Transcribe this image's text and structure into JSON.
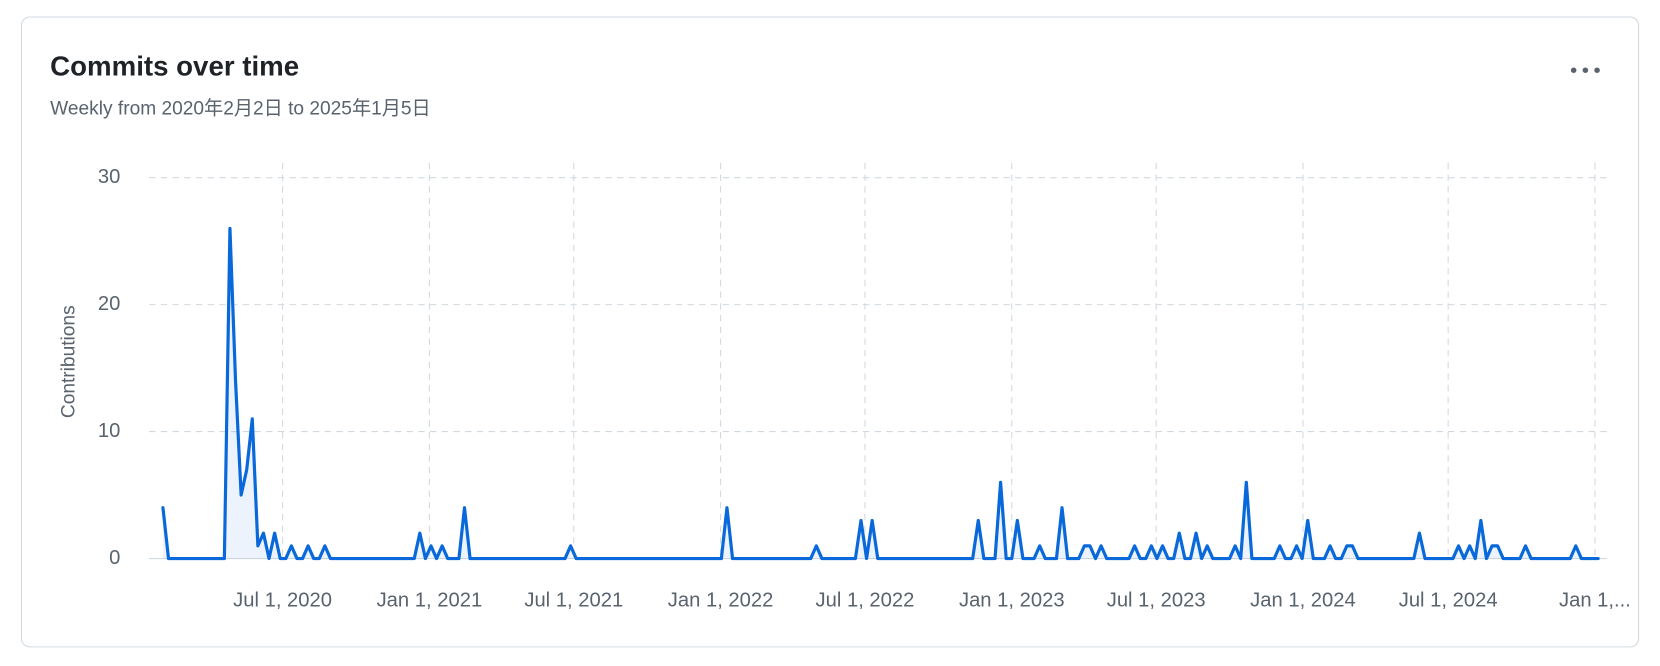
{
  "chart_data": {
    "type": "line",
    "title": "Commits over time",
    "subtitle": "Weekly from 2020年2月2日 to 2025年1月5日",
    "y_label": "Contributions",
    "x": [
      "2020-02-02",
      "2020-02-09",
      "2020-04-19",
      "2020-04-26",
      "2020-05-03",
      "2020-05-10",
      "2020-05-17",
      "2020-05-24",
      "2020-05-31",
      "2020-06-07",
      "2020-06-14",
      "2020-06-21",
      "2020-06-28",
      "2020-07-05",
      "2020-07-12",
      "2020-07-19",
      "2020-07-26",
      "2020-08-02",
      "2020-08-09",
      "2020-08-16",
      "2020-08-23",
      "2020-08-30",
      "2020-12-13",
      "2020-12-20",
      "2020-12-27",
      "2021-01-03",
      "2021-01-10",
      "2021-01-17",
      "2021-01-24",
      "2021-02-07",
      "2021-02-14",
      "2021-02-21",
      "2021-06-20",
      "2021-06-27",
      "2021-07-04",
      "2022-01-02",
      "2022-01-09",
      "2022-01-16",
      "2022-04-24",
      "2022-05-01",
      "2022-05-08",
      "2022-06-19",
      "2022-06-26",
      "2022-07-03",
      "2022-07-10",
      "2022-07-17",
      "2022-11-13",
      "2022-11-20",
      "2022-11-27",
      "2022-12-11",
      "2022-12-18",
      "2022-12-25",
      "2023-01-01",
      "2023-01-08",
      "2023-01-15",
      "2023-01-29",
      "2023-02-05",
      "2023-02-12",
      "2023-02-26",
      "2023-03-05",
      "2023-03-12",
      "2023-03-26",
      "2023-04-02",
      "2023-04-09",
      "2023-04-16",
      "2023-04-23",
      "2023-04-30",
      "2023-05-28",
      "2023-06-04",
      "2023-06-11",
      "2023-06-18",
      "2023-06-25",
      "2023-07-02",
      "2023-07-09",
      "2023-07-16",
      "2023-07-23",
      "2023-07-30",
      "2023-08-06",
      "2023-08-13",
      "2023-08-20",
      "2023-08-27",
      "2023-09-03",
      "2023-09-10",
      "2023-10-01",
      "2023-10-08",
      "2023-10-15",
      "2023-10-22",
      "2023-10-29",
      "2023-11-26",
      "2023-12-03",
      "2023-12-10",
      "2023-12-17",
      "2023-12-24",
      "2023-12-31",
      "2024-01-07",
      "2024-01-14",
      "2024-01-28",
      "2024-02-04",
      "2024-02-11",
      "2024-02-18",
      "2024-02-25",
      "2024-03-03",
      "2024-03-10",
      "2024-05-19",
      "2024-05-26",
      "2024-06-02",
      "2024-07-07",
      "2024-07-14",
      "2024-07-21",
      "2024-07-28",
      "2024-08-04",
      "2024-08-11",
      "2024-08-18",
      "2024-08-25",
      "2024-09-01",
      "2024-09-08",
      "2024-09-29",
      "2024-10-06",
      "2024-10-13",
      "2024-12-01",
      "2024-12-08",
      "2024-12-15",
      "2025-01-05"
    ],
    "series": [
      {
        "name": "Contributions",
        "color": "#0969da",
        "values": [
          4,
          0,
          0,
          26,
          14,
          5,
          7,
          11,
          1,
          2,
          0,
          2,
          0,
          0,
          1,
          0,
          0,
          1,
          0,
          0,
          1,
          0,
          0,
          2,
          0,
          1,
          0,
          1,
          0,
          0,
          4,
          0,
          0,
          1,
          0,
          0,
          4,
          0,
          0,
          1,
          0,
          0,
          3,
          0,
          3,
          0,
          0,
          3,
          0,
          0,
          6,
          0,
          0,
          3,
          0,
          0,
          1,
          0,
          0,
          4,
          0,
          0,
          1,
          1,
          0,
          1,
          0,
          0,
          1,
          0,
          0,
          1,
          0,
          1,
          0,
          0,
          2,
          0,
          0,
          2,
          0,
          1,
          0,
          0,
          1,
          0,
          6,
          0,
          0,
          1,
          0,
          0,
          1,
          0,
          3,
          0,
          0,
          1,
          0,
          0,
          1,
          1,
          0,
          0,
          2,
          0,
          0,
          1,
          0,
          1,
          0,
          3,
          0,
          1,
          1,
          0,
          0,
          1,
          0,
          0,
          1,
          0,
          0
        ]
      }
    ],
    "xlim": [
      "2020-02-02",
      "2025-01-05"
    ],
    "xticks": [
      {
        "value": "2020-07-01",
        "label": "Jul 1, 2020"
      },
      {
        "value": "2021-01-01",
        "label": "Jan 1, 2021"
      },
      {
        "value": "2021-07-01",
        "label": "Jul 1, 2021"
      },
      {
        "value": "2022-01-01",
        "label": "Jan 1, 2022"
      },
      {
        "value": "2022-07-01",
        "label": "Jul 1, 2022"
      },
      {
        "value": "2023-01-01",
        "label": "Jan 1, 2023"
      },
      {
        "value": "2023-07-01",
        "label": "Jul 1, 2023"
      },
      {
        "value": "2024-01-01",
        "label": "Jan 1, 2024"
      },
      {
        "value": "2024-07-01",
        "label": "Jul 1, 2024"
      },
      {
        "value": "2025-01-01",
        "label": "Jan 1,..."
      }
    ],
    "ylim": [
      0,
      30
    ],
    "yticks": [
      0,
      10,
      20,
      30
    ],
    "grid": true
  }
}
